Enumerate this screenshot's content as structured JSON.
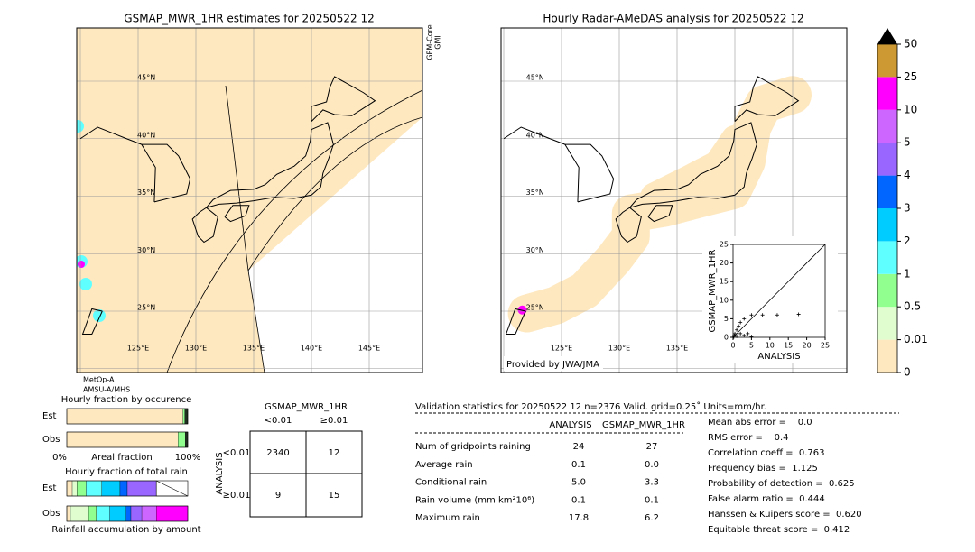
{
  "left_map": {
    "title": "GSMAP_MWR_1HR estimates for 20250522 12",
    "lat_labels": [
      "45°N",
      "40°N",
      "35°N",
      "30°N",
      "25°N"
    ],
    "lon_labels": [
      "125°E",
      "130°E",
      "135°E",
      "140°E",
      "145°E"
    ],
    "satellite_label": [
      "GPM-Core",
      "GMI"
    ],
    "sensor_label": [
      "MetOp-A",
      "AMSU-A/MHS"
    ]
  },
  "right_map": {
    "title": "Hourly Radar-AMeDAS analysis for 20250522 12",
    "lat_labels": [
      "45°N",
      "40°N",
      "35°N",
      "30°N",
      "25°N"
    ],
    "lon_labels": [
      "125°E",
      "130°E",
      "135°E"
    ],
    "credit": "Provided by JWA/JMA"
  },
  "colorbar": {
    "levels": [
      0,
      0.01,
      0.5,
      1,
      2,
      3,
      4,
      5,
      10,
      25,
      50
    ],
    "colors": [
      "#fee8c0",
      "#e0fdd0",
      "#90ff90",
      "#60ffff",
      "#00ccff",
      "#0066ff",
      "#9966ff",
      "#cc66ff",
      "#ff00ff",
      "#cc9933"
    ],
    "extend_color": "#000000"
  },
  "chart_data": {
    "type": "scatter",
    "x": [
      17.8,
      12,
      8,
      5,
      3,
      2,
      1,
      0.5,
      2,
      0.3,
      1.5,
      4,
      0.2,
      1,
      3,
      5
    ],
    "y": [
      6.2,
      6,
      6,
      6,
      5,
      4,
      2,
      1,
      1,
      0.5,
      3,
      1,
      0.1,
      0.3,
      0.5,
      0.2
    ],
    "xlim": [
      0,
      25
    ],
    "ylim": [
      0,
      25
    ],
    "xticks": [
      0,
      5,
      10,
      15,
      20,
      25
    ],
    "yticks": [
      0,
      5,
      10,
      15,
      20,
      25
    ],
    "xlabel": "ANALYSIS",
    "ylabel": "GSMAP_MWR_1HR",
    "color": "#000000"
  },
  "occurrence": {
    "title": "Hourly fraction by occurence",
    "rows": [
      "Est",
      "Obs"
    ],
    "axis_labels": [
      "0%",
      "Areal fraction",
      "100%"
    ],
    "colors": [
      "#fee8c0",
      "#90ff90",
      "#203020"
    ],
    "est": [
      0.96,
      0.015,
      0.025
    ],
    "obs": [
      0.92,
      0.06,
      0.02
    ]
  },
  "total_rain": {
    "title": "Hourly fraction of total rain",
    "rows": [
      "Est",
      "Obs"
    ],
    "footer": "Rainfall accumulation by amount",
    "colors": [
      "#fee8c0",
      "#e0fdd0",
      "#90ff90",
      "#60ffff",
      "#00ccff",
      "#0066ff",
      "#9966ff",
      "#cc66ff",
      "#ff00ff"
    ],
    "est": [
      0.045,
      0.04,
      0.075,
      0.13,
      0.15,
      0.06,
      0.24,
      0,
      0
    ],
    "obs": [
      0.03,
      0.15,
      0.065,
      0.11,
      0.135,
      0.04,
      0.09,
      0.12,
      0.26
    ]
  },
  "contingency": {
    "title": "GSMAP_MWR_1HR",
    "col_labels": [
      "<0.01",
      "≥0.01"
    ],
    "row_title": "ANALYSIS",
    "row_labels": [
      "<0.01",
      "≥0.01"
    ],
    "cells": [
      [
        "2340",
        "12"
      ],
      [
        "9",
        "15"
      ]
    ]
  },
  "stats": {
    "title": "Validation statistics for 20250522 12  n=2376 Valid. grid=0.25˚ Units=mm/hr.",
    "headers": [
      "ANALYSIS",
      "GSMAP_MWR_1HR"
    ],
    "rows": [
      [
        "Num of gridpoints raining",
        "24",
        "27"
      ],
      [
        "Average rain",
        "0.1",
        "0.0"
      ],
      [
        "Conditional rain",
        "5.0",
        "3.3"
      ],
      [
        "Rain volume (mm km²10⁶)",
        "0.1",
        "0.1"
      ],
      [
        "Maximum rain",
        "17.8",
        "6.2"
      ]
    ],
    "scores": [
      "Mean abs error =    0.0",
      "RMS error =    0.4",
      "Correlation coeff =  0.763",
      "Frequency bias =  1.125",
      "Probability of detection =  0.625",
      "False alarm ratio =  0.444",
      "Hanssen & Kuipers score =  0.620",
      "Equitable threat score =  0.412"
    ]
  }
}
